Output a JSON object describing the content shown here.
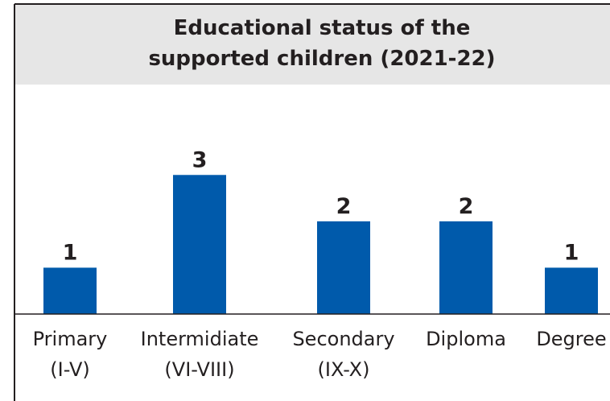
{
  "chart_data": {
    "type": "bar",
    "title": "Educational status of the supported children (2021-22)",
    "categories": [
      "Primary (I-V)",
      "Intermidiate (VI-VIII)",
      "Secondary (IX-X)",
      "Diploma",
      "Degree"
    ],
    "values": [
      1,
      3,
      2,
      2,
      1
    ],
    "color": "#005aab",
    "ylim": [
      0,
      3.3
    ]
  }
}
